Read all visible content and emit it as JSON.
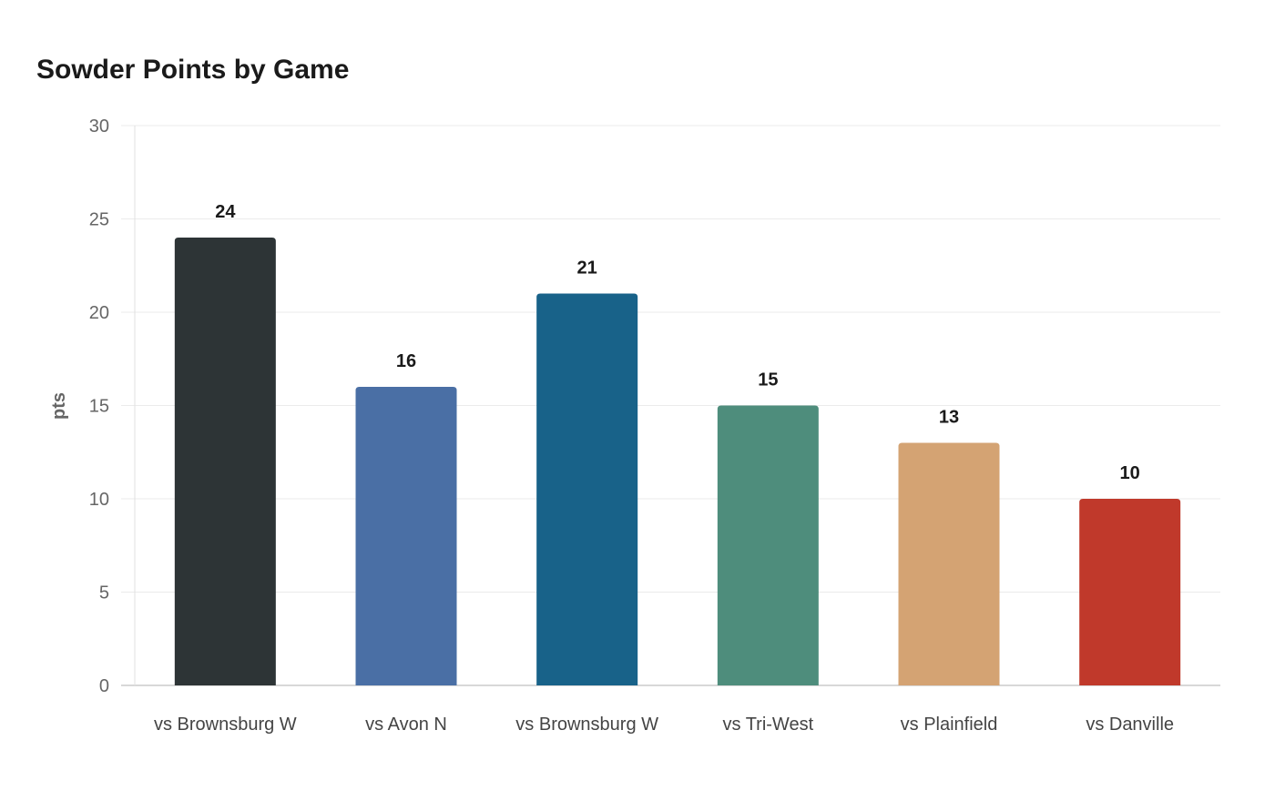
{
  "chart_data": {
    "type": "bar",
    "title": "Sowder Points by Game",
    "xlabel": "",
    "ylabel": "pts",
    "categories": [
      "vs Brownsburg W",
      "vs Avon N",
      "vs Brownsburg W",
      "vs Tri-West",
      "vs Plainfield",
      "vs Danville"
    ],
    "values": [
      24,
      16,
      21,
      15,
      13,
      10
    ],
    "colors": [
      "#2d3436",
      "#4a6fa5",
      "#186289",
      "#4e8d7c",
      "#d4a373",
      "#c0392b"
    ],
    "ylim": [
      0,
      30
    ],
    "yticks": [
      0,
      5,
      10,
      15,
      20,
      25,
      30
    ],
    "grid": true,
    "data_labels": true
  }
}
